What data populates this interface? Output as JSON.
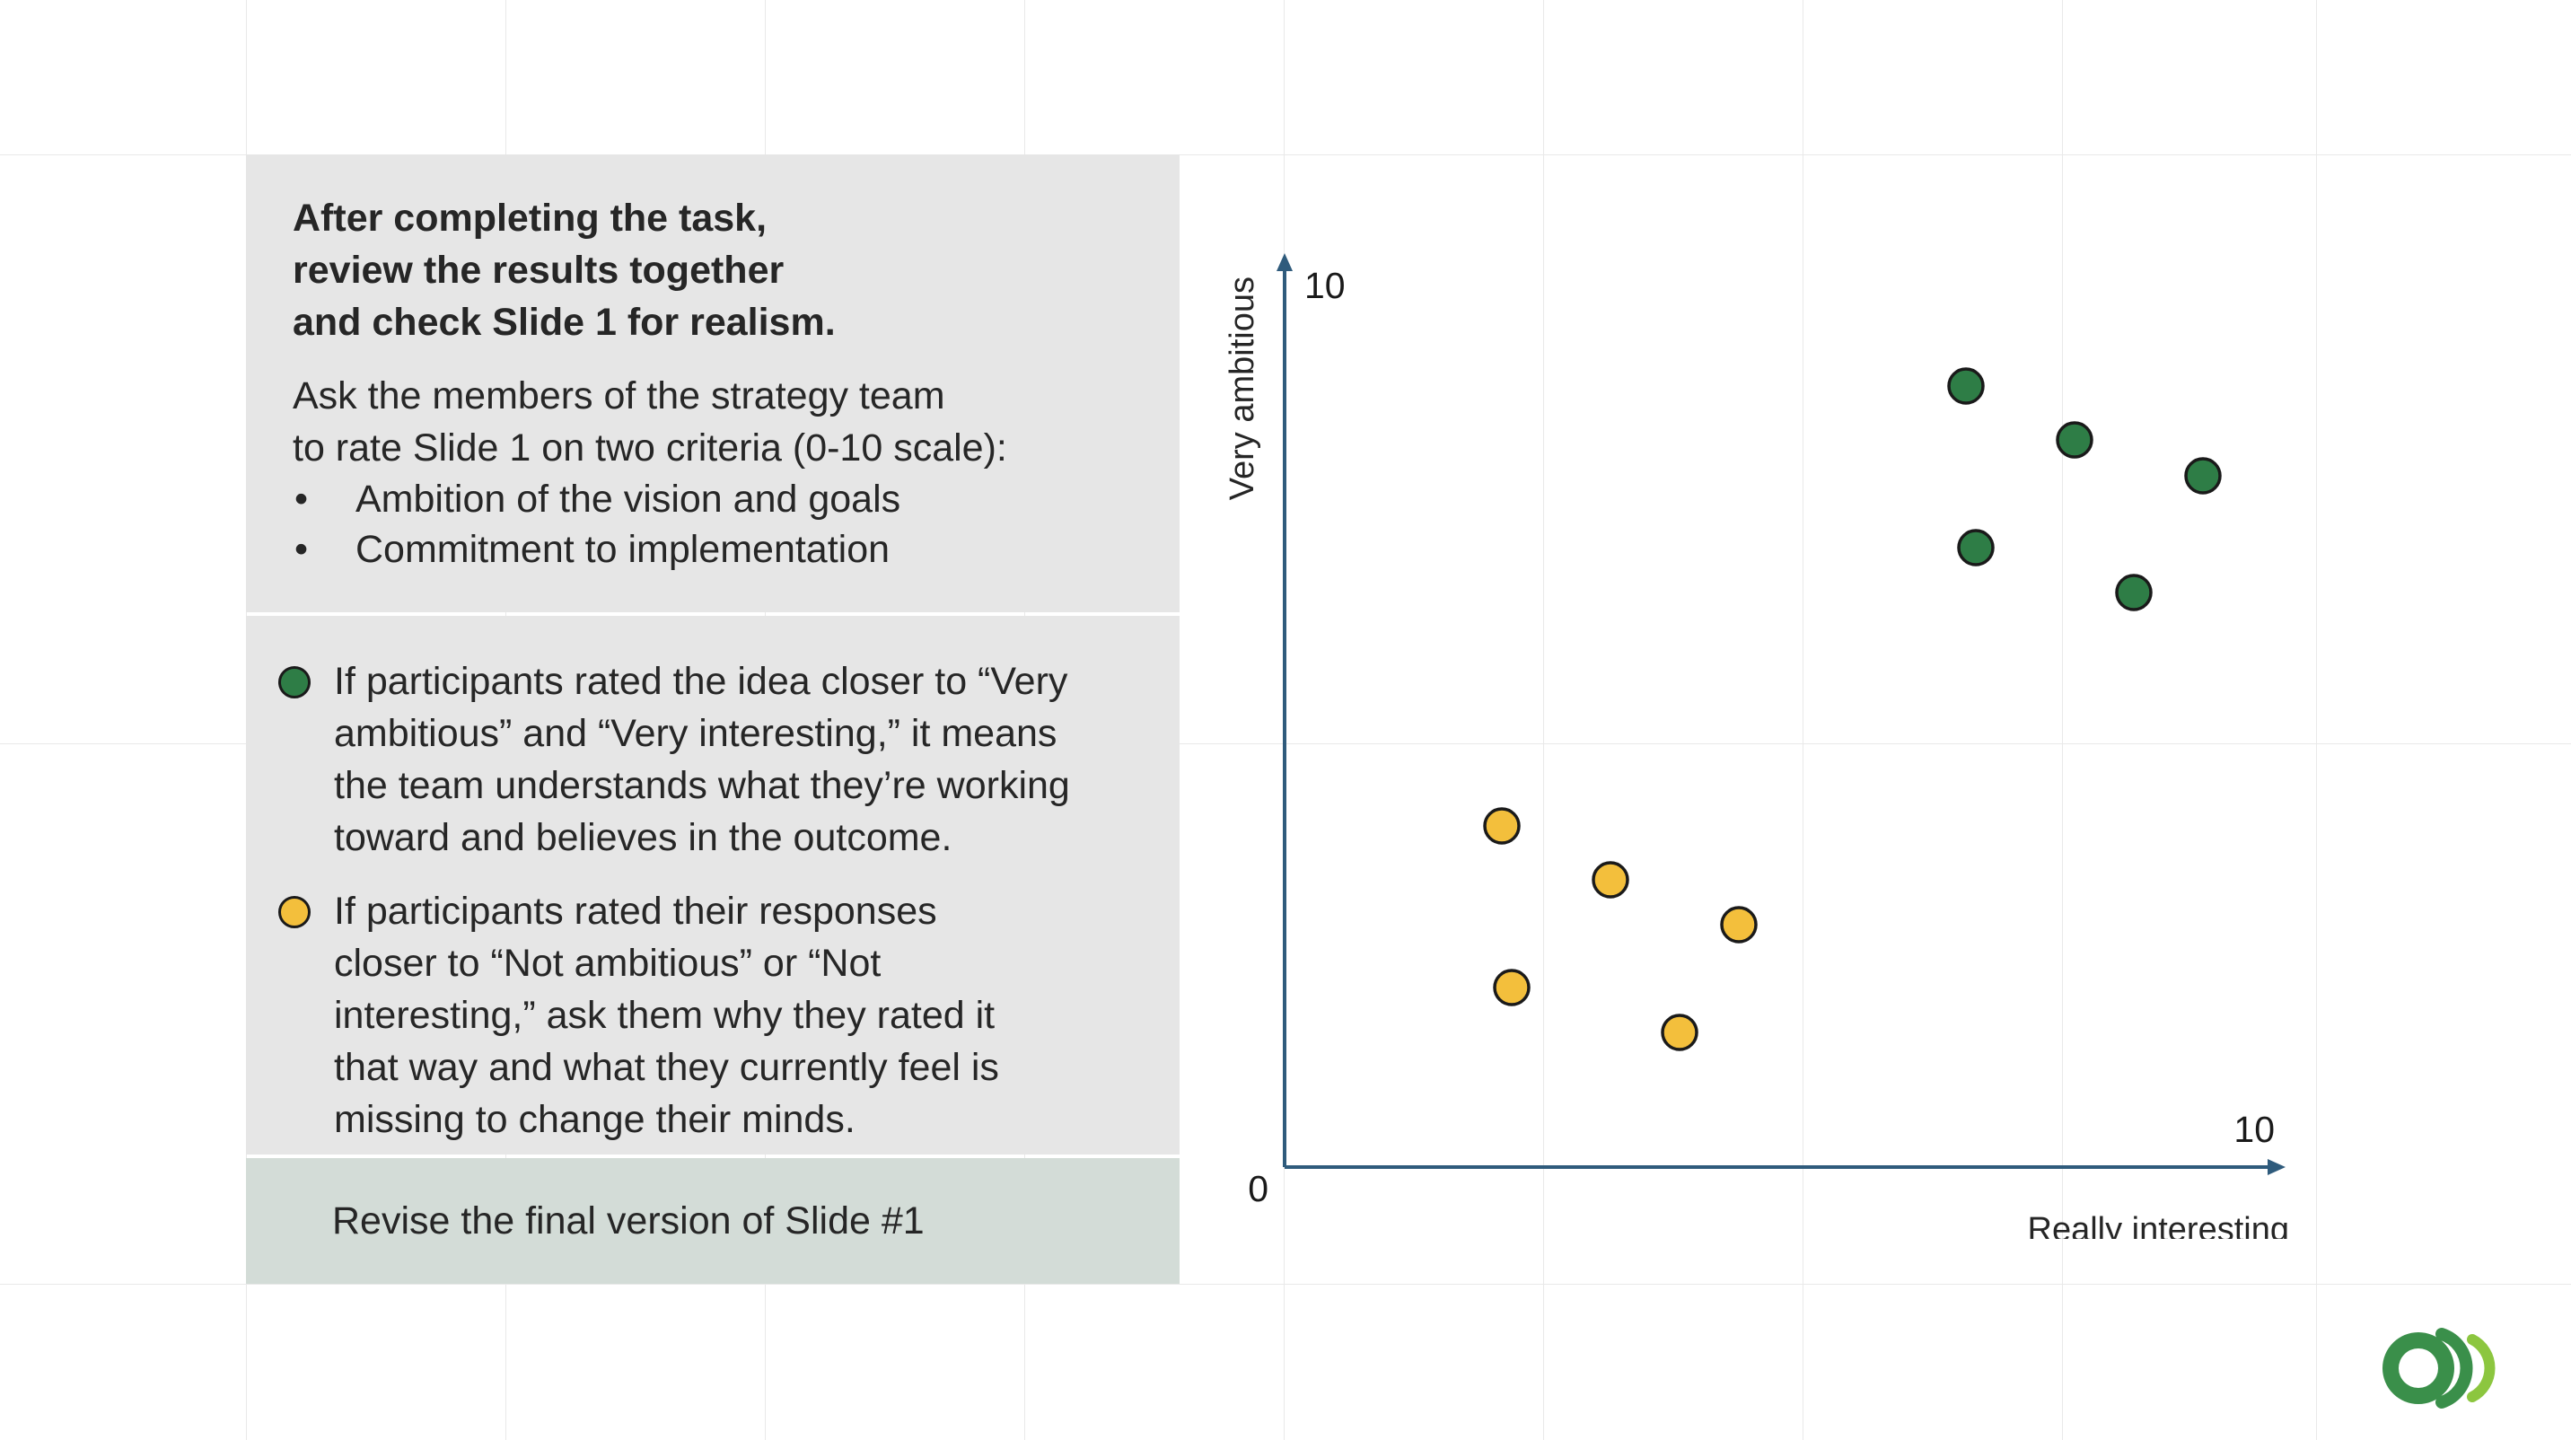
{
  "panel_top": {
    "heading_lines": [
      "After completing the task,",
      "review the results together",
      "and check Slide 1 for realism."
    ],
    "intro_lines": [
      "Ask the members of the strategy team",
      "to rate Slide 1 on two criteria (0-10 scale):"
    ],
    "bullets": [
      "Ambition of the vision and goals",
      "Commitment to implementation"
    ],
    "bullet_symbol": "•"
  },
  "panel_middle": {
    "green_text_lines": [
      "If participants rated the idea closer to “Very",
      "ambitious” and “Very interesting,” it means",
      "the team understands what they’re working",
      "toward and believes in the outcome."
    ],
    "yellow_text_lines": [
      "If participants rated their responses",
      "closer to “Not ambitious” or “Not",
      "interesting,” ask them why they rated it",
      "that way and what they currently feel is",
      "missing to change their minds."
    ]
  },
  "panel_bottom": {
    "label": "Revise the final version of Slide #1"
  },
  "colors": {
    "green": "#2e7d46",
    "yellow": "#f3bf3c",
    "axis": "#2f5b7c",
    "logo": "#3a8f4a"
  },
  "chart_data": {
    "type": "scatter",
    "xlim": [
      0,
      10
    ],
    "ylim": [
      0,
      10
    ],
    "xlabel": "Really interesting",
    "ylabel": "Very ambitious",
    "x_tick_max_label": "10",
    "y_tick_max_label": "10",
    "origin_label": "0",
    "series": [
      {
        "color": "green",
        "points": [
          {
            "x": 6.9,
            "y": 8.7
          },
          {
            "x": 8.0,
            "y": 8.1
          },
          {
            "x": 9.3,
            "y": 7.7
          },
          {
            "x": 7.0,
            "y": 6.9
          },
          {
            "x": 8.6,
            "y": 6.4
          }
        ]
      },
      {
        "color": "yellow",
        "points": [
          {
            "x": 2.2,
            "y": 3.8
          },
          {
            "x": 3.3,
            "y": 3.2
          },
          {
            "x": 4.6,
            "y": 2.7
          },
          {
            "x": 2.3,
            "y": 2.0
          },
          {
            "x": 4.0,
            "y": 1.5
          }
        ]
      }
    ]
  }
}
